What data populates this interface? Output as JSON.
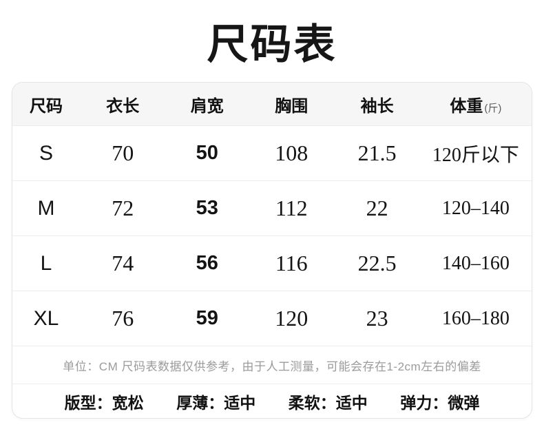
{
  "title": "尺码表",
  "chart_data": {
    "type": "table",
    "title": "尺码表",
    "columns": [
      "尺码",
      "衣长",
      "肩宽",
      "胸围",
      "袖长",
      "体重(斤)"
    ],
    "column_header_labels": [
      "尺码",
      "衣长",
      "肩宽",
      "胸围",
      "袖长",
      "体重"
    ],
    "weight_unit_suffix": "(斤)",
    "rows": [
      [
        "S",
        "70",
        "50",
        "108",
        "21.5",
        "120斤以下"
      ],
      [
        "M",
        "72",
        "53",
        "112",
        "22",
        "120–140"
      ],
      [
        "L",
        "74",
        "56",
        "116",
        "22.5",
        "140–160"
      ],
      [
        "XL",
        "76",
        "59",
        "120",
        "23",
        "160–180"
      ]
    ],
    "note": "单位：CM 尺码表数据仅供参考，由于人工测量，可能会存在1-2cm左右的偏差",
    "attributes": [
      "版型：宽松",
      "厚薄：适中",
      "柔软：适中",
      "弹力：微弹"
    ]
  },
  "colors": {
    "header_bg": "#f6f6f6",
    "card_border": "#e4e4e4",
    "divider": "#ededed",
    "text": "#141414",
    "note_text": "#9b9b9b"
  }
}
